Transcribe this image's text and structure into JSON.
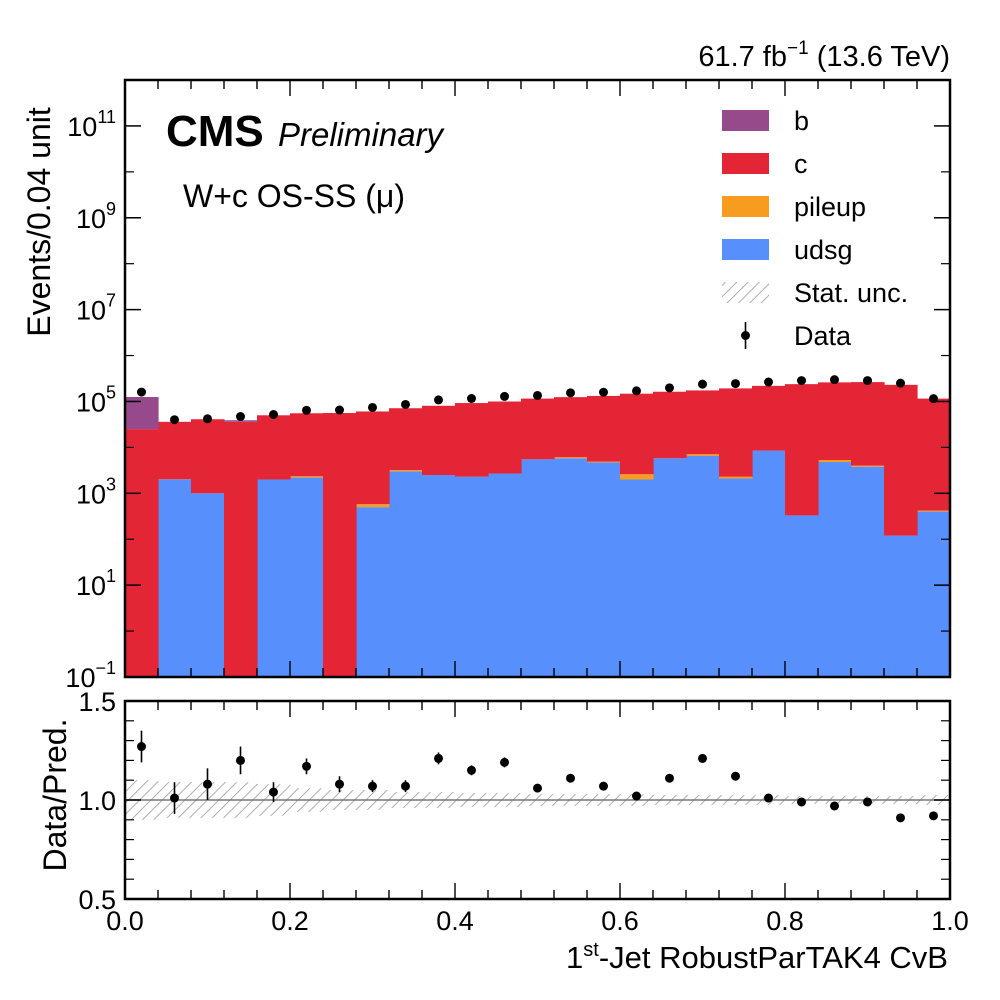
{
  "header": {
    "lumi_prefix": "61.7 fb",
    "lumi_exp": "−1",
    "lumi_suffix": " (13.6 TeV)"
  },
  "labels": {
    "cms": "CMS",
    "preliminary": "Preliminary",
    "region": "W+c OS-SS (μ)"
  },
  "legend": {
    "placement": "top-right",
    "items": [
      {
        "label": "b",
        "kind": "fill",
        "color": "#964A8B"
      },
      {
        "label": "c",
        "kind": "fill",
        "color": "#E42536"
      },
      {
        "label": "pileup",
        "kind": "fill",
        "color": "#F89C20"
      },
      {
        "label": "udsg",
        "kind": "fill",
        "color": "#5790FC"
      },
      {
        "label": "Stat. unc.",
        "kind": "hatch",
        "color": "#999999"
      },
      {
        "label": "Data",
        "kind": "marker",
        "color": "#000000"
      }
    ]
  },
  "colors": {
    "b": "#964A8B",
    "c": "#E42536",
    "pileup": "#F89C20",
    "udsg": "#5790FC",
    "data": "#000000",
    "unc": "#999999"
  },
  "chart_data": [
    {
      "type": "bar",
      "stacked": true,
      "log_y": true,
      "ylabel": "Events/0.04 unit",
      "xlim": [
        0,
        1
      ],
      "ylim": [
        0.1,
        1000000000000.0
      ],
      "y_ticks": [
        {
          "value": 0.1,
          "base": "10",
          "exp": "−1"
        },
        {
          "value": 10,
          "base": "10",
          "exp": "1"
        },
        {
          "value": 1000,
          "base": "10",
          "exp": "3"
        },
        {
          "value": 100000,
          "base": "10",
          "exp": "5"
        },
        {
          "value": 10000000,
          "base": "10",
          "exp": "7"
        },
        {
          "value": 1000000000,
          "base": "10",
          "exp": "9"
        },
        {
          "value": 100000000000,
          "base": "10",
          "exp": "11"
        }
      ],
      "bin_edges": [
        0,
        0.04,
        0.08,
        0.12,
        0.16,
        0.2,
        0.24,
        0.28,
        0.32,
        0.36,
        0.4,
        0.44,
        0.48,
        0.52,
        0.56,
        0.6,
        0.64,
        0.68,
        0.72,
        0.76,
        0.8,
        0.84,
        0.88,
        0.92,
        0.96,
        1.0
      ],
      "series": [
        {
          "name": "udsg",
          "values": [
            0.1,
            2000,
            1000,
            0.1,
            2000,
            2200,
            0.1,
            500,
            3000,
            2500,
            2300,
            2700,
            5500,
            5800,
            4700,
            2000,
            5800,
            6500,
            2100,
            8500,
            330,
            4800,
            3800,
            120,
            400
          ]
        },
        {
          "name": "pileup",
          "values": [
            0,
            20,
            0,
            0,
            0,
            150,
            0,
            80,
            200,
            0,
            0,
            0,
            0,
            300,
            200,
            600,
            0,
            600,
            200,
            0,
            0,
            500,
            200,
            0,
            20
          ]
        },
        {
          "name": "c",
          "values": [
            25000,
            34000,
            40000,
            36000,
            48000,
            53000,
            56000,
            60000,
            68000,
            78000,
            90000,
            97000,
            110000,
            118000,
            127000,
            145000,
            157000,
            167000,
            190000,
            210000,
            238000,
            255000,
            260000,
            230000,
            115000
          ]
        },
        {
          "name": "b",
          "values": [
            100000,
            0,
            0,
            3000,
            0,
            0,
            0,
            0,
            0,
            0,
            0,
            0,
            0,
            0,
            0,
            0,
            0,
            0,
            0,
            0,
            0,
            0,
            0,
            0,
            0
          ]
        }
      ],
      "data_points": {
        "name": "Data",
        "x": [
          0.02,
          0.06,
          0.1,
          0.14,
          0.18,
          0.22,
          0.26,
          0.3,
          0.34,
          0.38,
          0.42,
          0.46,
          0.5,
          0.54,
          0.58,
          0.62,
          0.66,
          0.7,
          0.74,
          0.78,
          0.82,
          0.86,
          0.9,
          0.94,
          0.98
        ],
        "y": [
          160000,
          40000,
          42000,
          47000,
          52000,
          64000,
          65000,
          74000,
          86000,
          108000,
          116000,
          129000,
          135000,
          154000,
          159000,
          170000,
          198000,
          238000,
          245000,
          265000,
          285000,
          298000,
          285000,
          250000,
          115000
        ]
      }
    },
    {
      "type": "scatter",
      "ylabel": "Data/Pred.",
      "xlabel_pre": "1",
      "xlabel_sup": "st",
      "xlabel_post": "-Jet RobustParTAK4 CvB",
      "xlim": [
        0,
        1
      ],
      "ylim": [
        0.5,
        1.5
      ],
      "x_ticks": [
        "0.0",
        "0.2",
        "0.4",
        "0.6",
        "0.8",
        "1.0"
      ],
      "y_ticks": [
        "0.5",
        "1.0",
        "1.5"
      ],
      "reference_line": 1.0,
      "ratio": {
        "x": [
          0.02,
          0.06,
          0.1,
          0.14,
          0.18,
          0.22,
          0.26,
          0.3,
          0.34,
          0.38,
          0.42,
          0.46,
          0.5,
          0.54,
          0.58,
          0.62,
          0.66,
          0.7,
          0.74,
          0.78,
          0.82,
          0.86,
          0.9,
          0.94,
          0.98
        ],
        "y": [
          1.27,
          1.01,
          1.08,
          1.2,
          1.04,
          1.17,
          1.08,
          1.07,
          1.07,
          1.21,
          1.15,
          1.19,
          1.06,
          1.11,
          1.07,
          1.02,
          1.11,
          1.21,
          1.12,
          1.01,
          0.99,
          0.97,
          0.99,
          0.91,
          0.92
        ],
        "err": [
          0.08,
          0.08,
          0.08,
          0.07,
          0.05,
          0.04,
          0.04,
          0.03,
          0.03,
          0.03,
          0.025,
          0.025,
          0.02,
          0.02,
          0.02,
          0.02,
          0.02,
          0.02,
          0.02,
          0.015,
          0.015,
          0.015,
          0.015,
          0.015,
          0.02
        ]
      },
      "stat_unc": [
        0.1,
        0.09,
        0.09,
        0.09,
        0.08,
        0.06,
        0.05,
        0.05,
        0.04,
        0.04,
        0.035,
        0.035,
        0.03,
        0.03,
        0.03,
        0.03,
        0.025,
        0.025,
        0.025,
        0.025,
        0.02,
        0.02,
        0.02,
        0.02,
        0.025
      ]
    }
  ]
}
